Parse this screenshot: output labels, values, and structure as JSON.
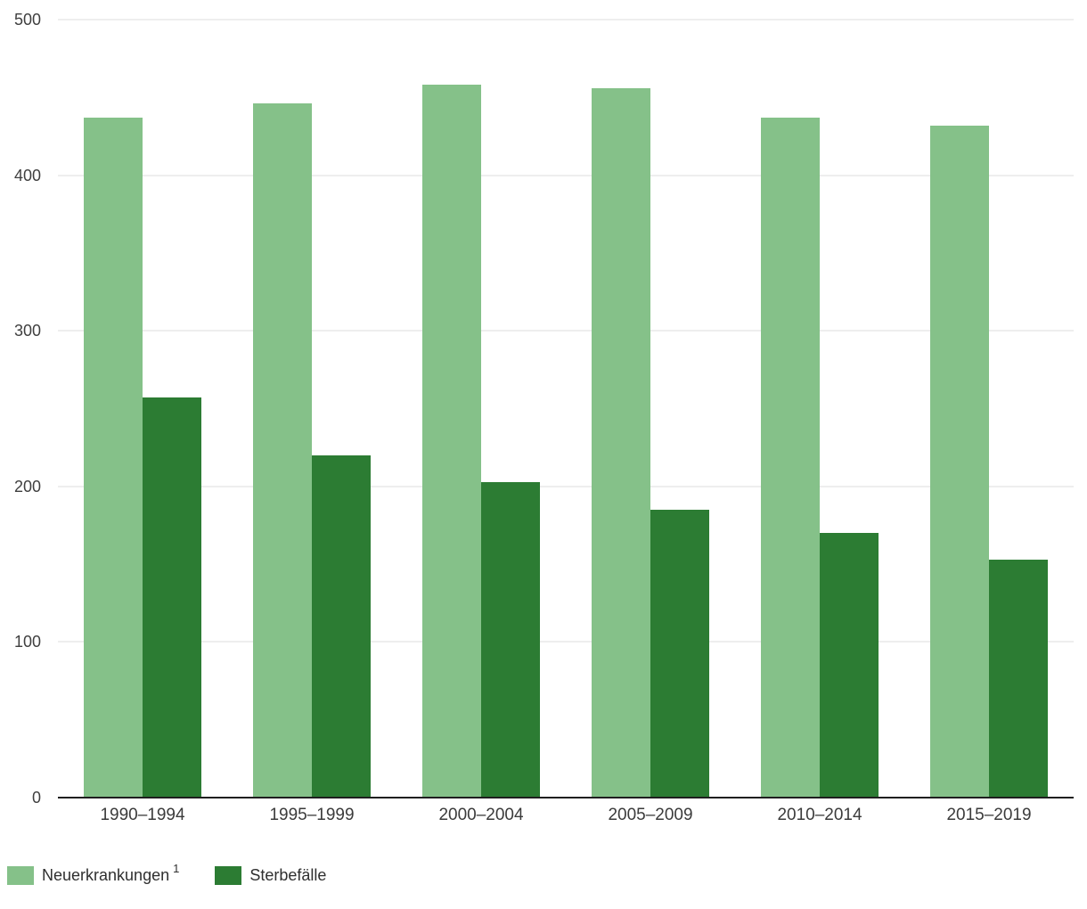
{
  "chart_data": {
    "type": "bar",
    "title": "",
    "xlabel": "",
    "ylabel": "",
    "categories": [
      "1990–1994",
      "1995–1999",
      "2000–2004",
      "2005–2009",
      "2010–2014",
      "2015–2019"
    ],
    "series": [
      {
        "key": "neuerkrankungen",
        "name": "Neuerkrankungen",
        "superscript": "1",
        "color": "#85c189",
        "values": [
          437,
          446,
          458,
          456,
          437,
          432
        ]
      },
      {
        "key": "sterbefaelle",
        "name": "Sterbefälle",
        "superscript": "",
        "color": "#2c7c33",
        "values": [
          257,
          220,
          203,
          185,
          170,
          153
        ]
      }
    ],
    "ylim": [
      0,
      500
    ],
    "yticks": [
      0,
      100,
      200,
      300,
      400,
      500
    ],
    "grid": true,
    "legend_position": "bottom-left"
  }
}
